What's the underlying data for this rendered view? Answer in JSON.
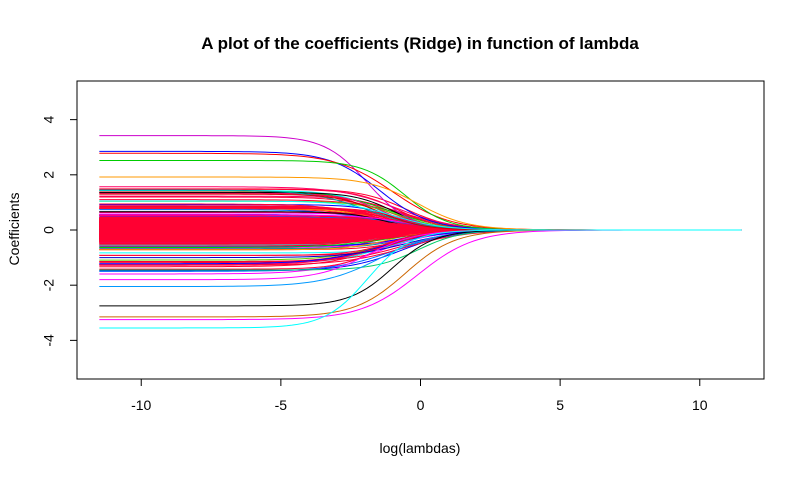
{
  "chart_data": {
    "type": "line",
    "title": "A plot of the coefficients (Ridge) in function of lambda",
    "xlabel": "log(lambdas)",
    "ylabel": "Coefficients",
    "xlim": [
      -12.3,
      12.3
    ],
    "ylim": [
      -5.4,
      5.4
    ],
    "x_ticks": [
      -10,
      -5,
      0,
      5,
      10
    ],
    "y_ticks": [
      -4,
      -2,
      0,
      2,
      4
    ],
    "x_range": [
      -11.5,
      11.5
    ],
    "grid": false,
    "legend": "none",
    "series_count": 300,
    "shrinkage_center": -1.0,
    "shrinkage_scale": 0.85,
    "representative_series": [
      {
        "color": "#cc00cc",
        "start_value": 3.42
      },
      {
        "color": "#0000ff",
        "start_value": 2.85
      },
      {
        "color": "#ff0000",
        "start_value": 2.78
      },
      {
        "color": "#00cc00",
        "start_value": 2.52
      },
      {
        "color": "#ff9900",
        "start_value": 1.92
      },
      {
        "color": "#009999",
        "start_value": 1.45
      },
      {
        "color": "#cc0000",
        "start_value": 1.3
      },
      {
        "color": "#00ffff",
        "start_value": 1.05
      },
      {
        "color": "#0000cc",
        "start_value": -1.0
      },
      {
        "color": "#00cc66",
        "start_value": -1.45
      },
      {
        "color": "#ff00ff",
        "start_value": -1.8
      },
      {
        "color": "#0099ff",
        "start_value": -2.05
      },
      {
        "color": "#000000",
        "start_value": -2.75
      },
      {
        "color": "#cc6600",
        "start_value": -3.15
      },
      {
        "color": "#ff00ff",
        "start_value": -3.25
      },
      {
        "color": "#00ffff",
        "start_value": -3.55
      }
    ],
    "palette": [
      "#ff0000",
      "#0000ff",
      "#00cc00",
      "#ff00ff",
      "#00ffff",
      "#ff9900",
      "#000000",
      "#009999",
      "#9900cc",
      "#ff0066",
      "#66cc00",
      "#0066ff"
    ],
    "dominant_color": "#ff0033"
  }
}
